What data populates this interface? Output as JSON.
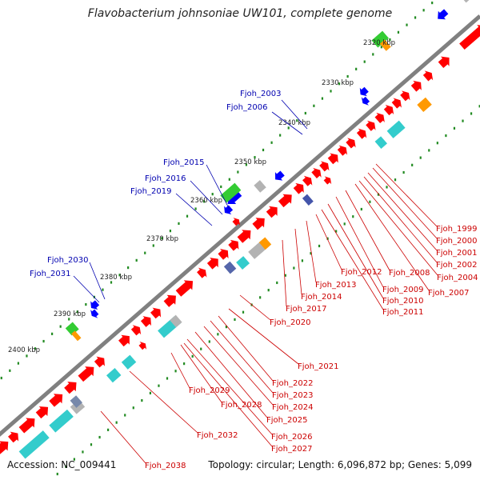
{
  "title": "Flavobacterium johnsoniae UW101, complete genome",
  "accession": "Accession: NC_009441",
  "topology": "Topology: circular; Length: 6,096,872 bp; Genes: 5,099",
  "colors": {
    "backbone": "#808080",
    "forward_cds": "#ff0000",
    "reverse_cds": "#0000ff",
    "cog_green": "#33cc33",
    "cog_cyan": "#33cccc",
    "cog_orange": "#ff9900",
    "cog_grey": "#b3b3b3",
    "tick_green": "#228b22",
    "label_blue": "#0000b0",
    "label_red": "#cc0000"
  },
  "kbp_ticks": [
    "2320 kbp",
    "2330 kbp",
    "2340 kbp",
    "2350 kbp",
    "2360 kbp",
    "2370 kbp",
    "2380 kbp",
    "2390 kbp",
    "2400 kbp"
  ],
  "blue_labels": [
    "Fjoh_2003",
    "Fjoh_2006",
    "Fjoh_2015",
    "Fjoh_2016",
    "Fjoh_2019",
    "Fjoh_2030",
    "Fjoh_2031"
  ],
  "red_labels": [
    "Fjoh_1999",
    "Fjoh_2000",
    "Fjoh_2001",
    "Fjoh_2002",
    "Fjoh_2004",
    "Fjoh_2007",
    "Fjoh_2008",
    "Fjoh_2009",
    "Fjoh_2010",
    "Fjoh_2011",
    "Fjoh_2012",
    "Fjoh_2013",
    "Fjoh_2014",
    "Fjoh_2017",
    "Fjoh_2020",
    "Fjoh_2021",
    "Fjoh_2022",
    "Fjoh_2023",
    "Fjoh_2024",
    "Fjoh_2025",
    "Fjoh_2026",
    "Fjoh_2027",
    "Fjoh_2028",
    "Fjoh_2029",
    "Fjoh_2032",
    "Fjoh_2038"
  ]
}
